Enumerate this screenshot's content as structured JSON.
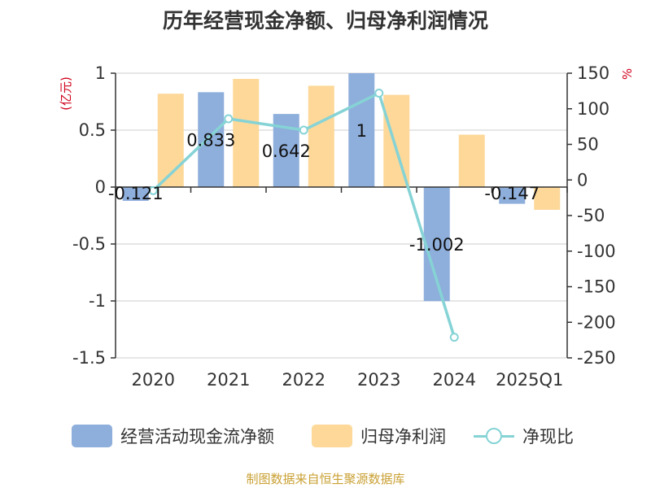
{
  "chart_data": {
    "type": "bar",
    "title": "历年经营现金净额、归母净利润情况",
    "categories": [
      "2020",
      "2021",
      "2022",
      "2023",
      "2024",
      "2025Q1"
    ],
    "left_axis": {
      "label": "(亿元)",
      "ylim": [
        -1.5,
        1
      ],
      "ticks": [
        1,
        0.5,
        0,
        -0.5,
        -1,
        -1.5
      ]
    },
    "right_axis": {
      "label": "%",
      "ylim": [
        -250,
        150
      ],
      "ticks": [
        150,
        100,
        50,
        0,
        -50,
        -100,
        -150,
        -200,
        -250
      ]
    },
    "series": [
      {
        "name": "经营活动现金流净额",
        "type": "bar",
        "axis": "left",
        "color": "#8eaedb",
        "values": [
          -0.121,
          0.833,
          0.642,
          1,
          -1.002,
          -0.147
        ],
        "labels": [
          "-0.121",
          "0.833",
          "0.642",
          "1",
          "-1.002",
          "-0.147"
        ]
      },
      {
        "name": "归母净利润",
        "type": "bar",
        "axis": "left",
        "color": "#fdd899",
        "values": [
          0.82,
          0.95,
          0.89,
          0.81,
          0.46,
          -0.2
        ]
      },
      {
        "name": "净现比",
        "type": "line",
        "axis": "right",
        "color": "#86d3d6",
        "values": [
          -15,
          86,
          70,
          122,
          -221,
          null
        ]
      }
    ],
    "grid": true,
    "legend_position": "bottom"
  },
  "source": "制图数据来自恒生聚源数据库"
}
